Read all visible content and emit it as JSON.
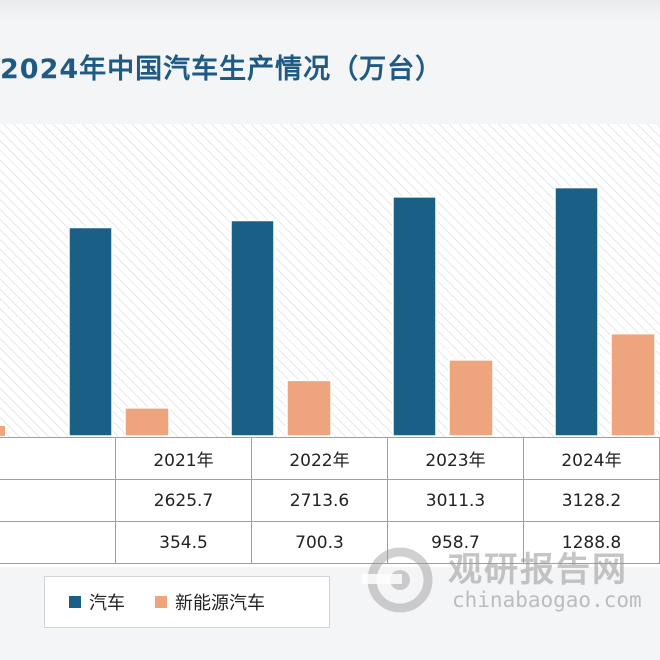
{
  "chart_data": {
    "type": "bar",
    "title": "2024年中国汽车生产情况（万台）",
    "categories": [
      "2021年",
      "2022年",
      "2023年",
      "2024年"
    ],
    "series": [
      {
        "name": "汽车",
        "values": [
          2625.7,
          2713.6,
          3011.3,
          3128.2
        ],
        "color": "#1a5f86"
      },
      {
        "name": "新能源汽车",
        "values": [
          354.5,
          700.3,
          958.7,
          1288.8
        ],
        "color": "#eea47c"
      }
    ],
    "ylim": [
      0,
      3400
    ],
    "grid": false,
    "legend": "bottom-left"
  },
  "watermark": {
    "name_cn": "观研报告网",
    "domain": "chinabaogao.com"
  }
}
